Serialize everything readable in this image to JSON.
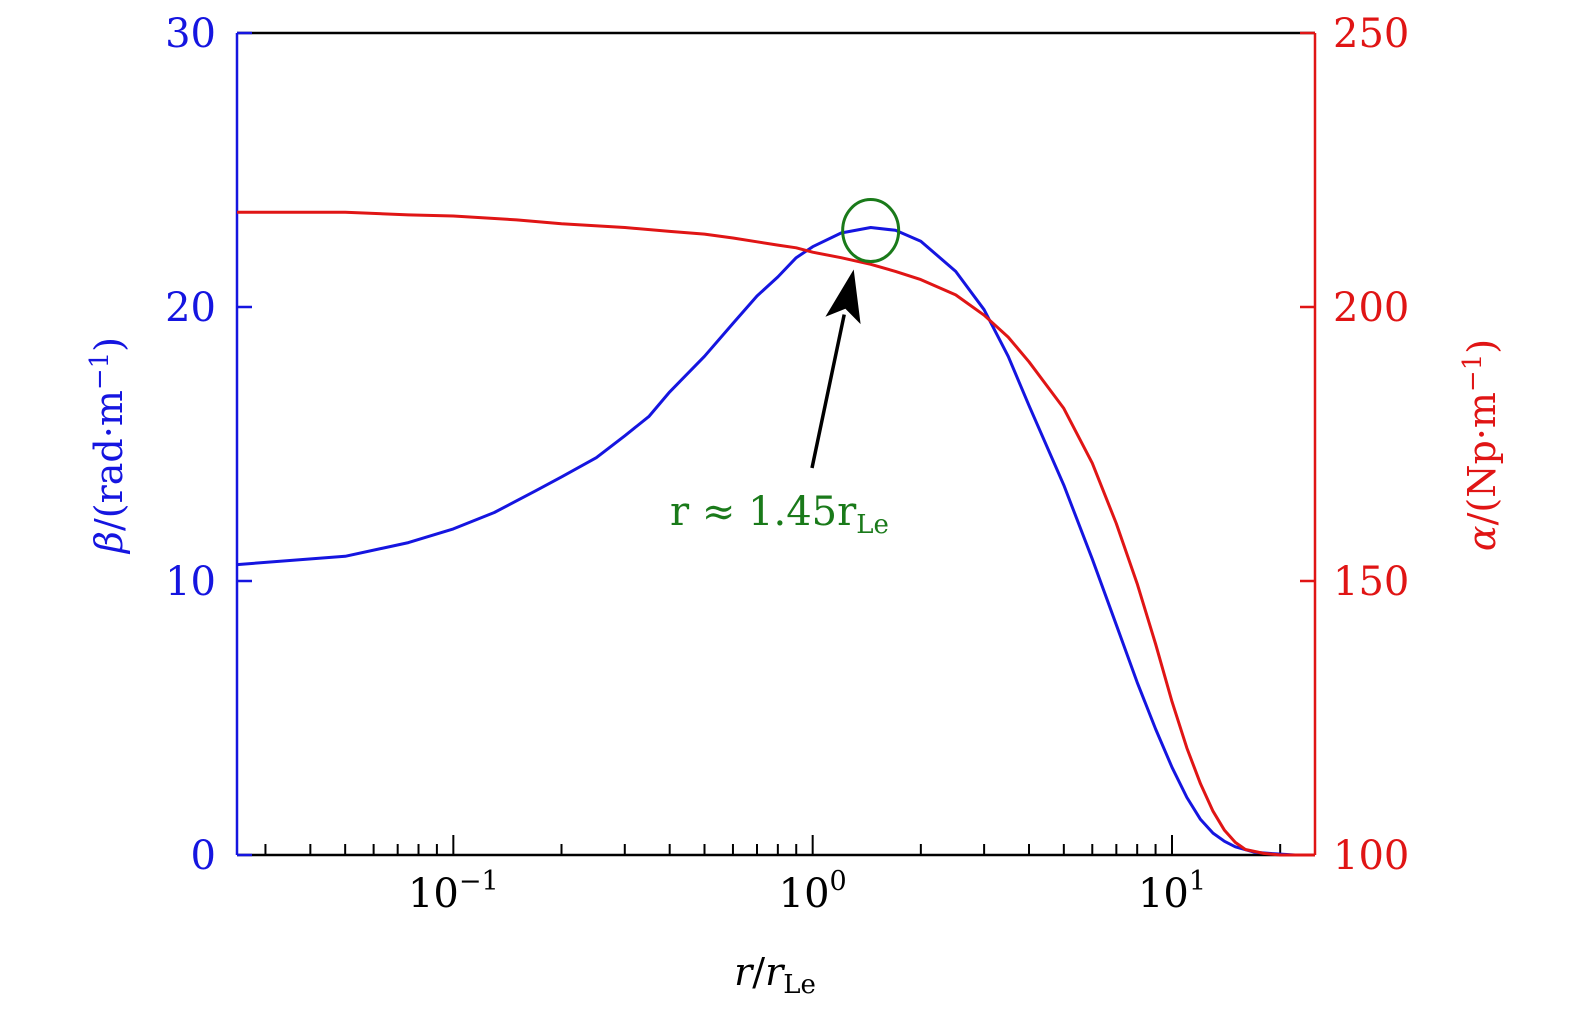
{
  "chart_data": {
    "type": "line",
    "x_scale": "log",
    "xlim": [
      0.025,
      25
    ],
    "x_ticks": [
      {
        "value": 0.1,
        "base": "10",
        "exp": "−1"
      },
      {
        "value": 1,
        "base": "10",
        "exp": "0"
      },
      {
        "value": 10,
        "base": "10",
        "exp": "1"
      }
    ],
    "xlabel": {
      "main": "r",
      "slash": "/",
      "var": "r",
      "sub": "Le"
    },
    "left_axis": {
      "label": {
        "sym": "β",
        "text": "/(rad·m",
        "exp": "−1",
        "close": ")"
      },
      "ylim": [
        0,
        30
      ],
      "ticks": [
        0,
        10,
        20,
        30
      ],
      "color": "#1515e0"
    },
    "right_axis": {
      "label": {
        "sym": "α",
        "text": "/(Np·m",
        "exp": "−1",
        "close": ")"
      },
      "ylim": [
        100,
        250
      ],
      "ticks": [
        100,
        150,
        200,
        250
      ],
      "color": "#e01515"
    },
    "series": [
      {
        "axis": "left",
        "color": "#1515e0",
        "x": [
          0.025,
          0.05,
          0.075,
          0.1,
          0.13,
          0.17,
          0.2,
          0.25,
          0.3,
          0.35,
          0.4,
          0.5,
          0.6,
          0.7,
          0.8,
          0.9,
          1.0,
          1.2,
          1.45,
          1.7,
          2.0,
          2.5,
          3.0,
          3.5,
          4.0,
          5.0,
          6.0,
          7.0,
          8.0,
          9.0,
          10.0,
          11.0,
          12.0,
          13.0,
          14.0,
          15.0,
          17.0,
          19.0,
          22.0,
          25.0
        ],
        "y": [
          10.6,
          10.9,
          11.4,
          11.9,
          12.5,
          13.3,
          13.8,
          14.5,
          15.3,
          16.0,
          16.9,
          18.2,
          19.4,
          20.4,
          21.1,
          21.8,
          22.2,
          22.7,
          22.9,
          22.8,
          22.4,
          21.3,
          19.9,
          18.2,
          16.4,
          13.5,
          10.8,
          8.4,
          6.3,
          4.6,
          3.2,
          2.1,
          1.3,
          0.8,
          0.5,
          0.3,
          0.1,
          0.05,
          0.0,
          0.0
        ]
      },
      {
        "axis": "right",
        "color": "#e01515",
        "x": [
          0.025,
          0.05,
          0.075,
          0.1,
          0.15,
          0.2,
          0.3,
          0.4,
          0.5,
          0.6,
          0.7,
          0.8,
          0.9,
          1.0,
          1.2,
          1.45,
          1.7,
          2.0,
          2.5,
          3.0,
          3.5,
          4.0,
          5.0,
          6.0,
          7.0,
          8.0,
          9.0,
          10.0,
          11.0,
          12.0,
          13.0,
          14.0,
          15.0,
          16.0,
          18.0,
          20.0,
          22.0,
          25.0
        ],
        "y": [
          217.3,
          217.3,
          216.8,
          216.6,
          215.9,
          215.2,
          214.5,
          213.8,
          213.3,
          212.6,
          211.9,
          211.3,
          210.8,
          210.0,
          209.0,
          207.8,
          206.5,
          205.0,
          202.2,
          198.5,
          194.5,
          190.0,
          181.5,
          171.5,
          160.5,
          149.5,
          138.5,
          128.0,
          119.5,
          113.0,
          108.0,
          104.5,
          102.3,
          101.0,
          100.3,
          100.0,
          100.0,
          100.0
        ]
      }
    ],
    "annotation": {
      "text_main": "r ≈ 1.45r",
      "text_sub": "Le",
      "color": "#1a7a1a",
      "target": {
        "x": 1.45,
        "y": 22.9,
        "axis": "left"
      }
    }
  }
}
